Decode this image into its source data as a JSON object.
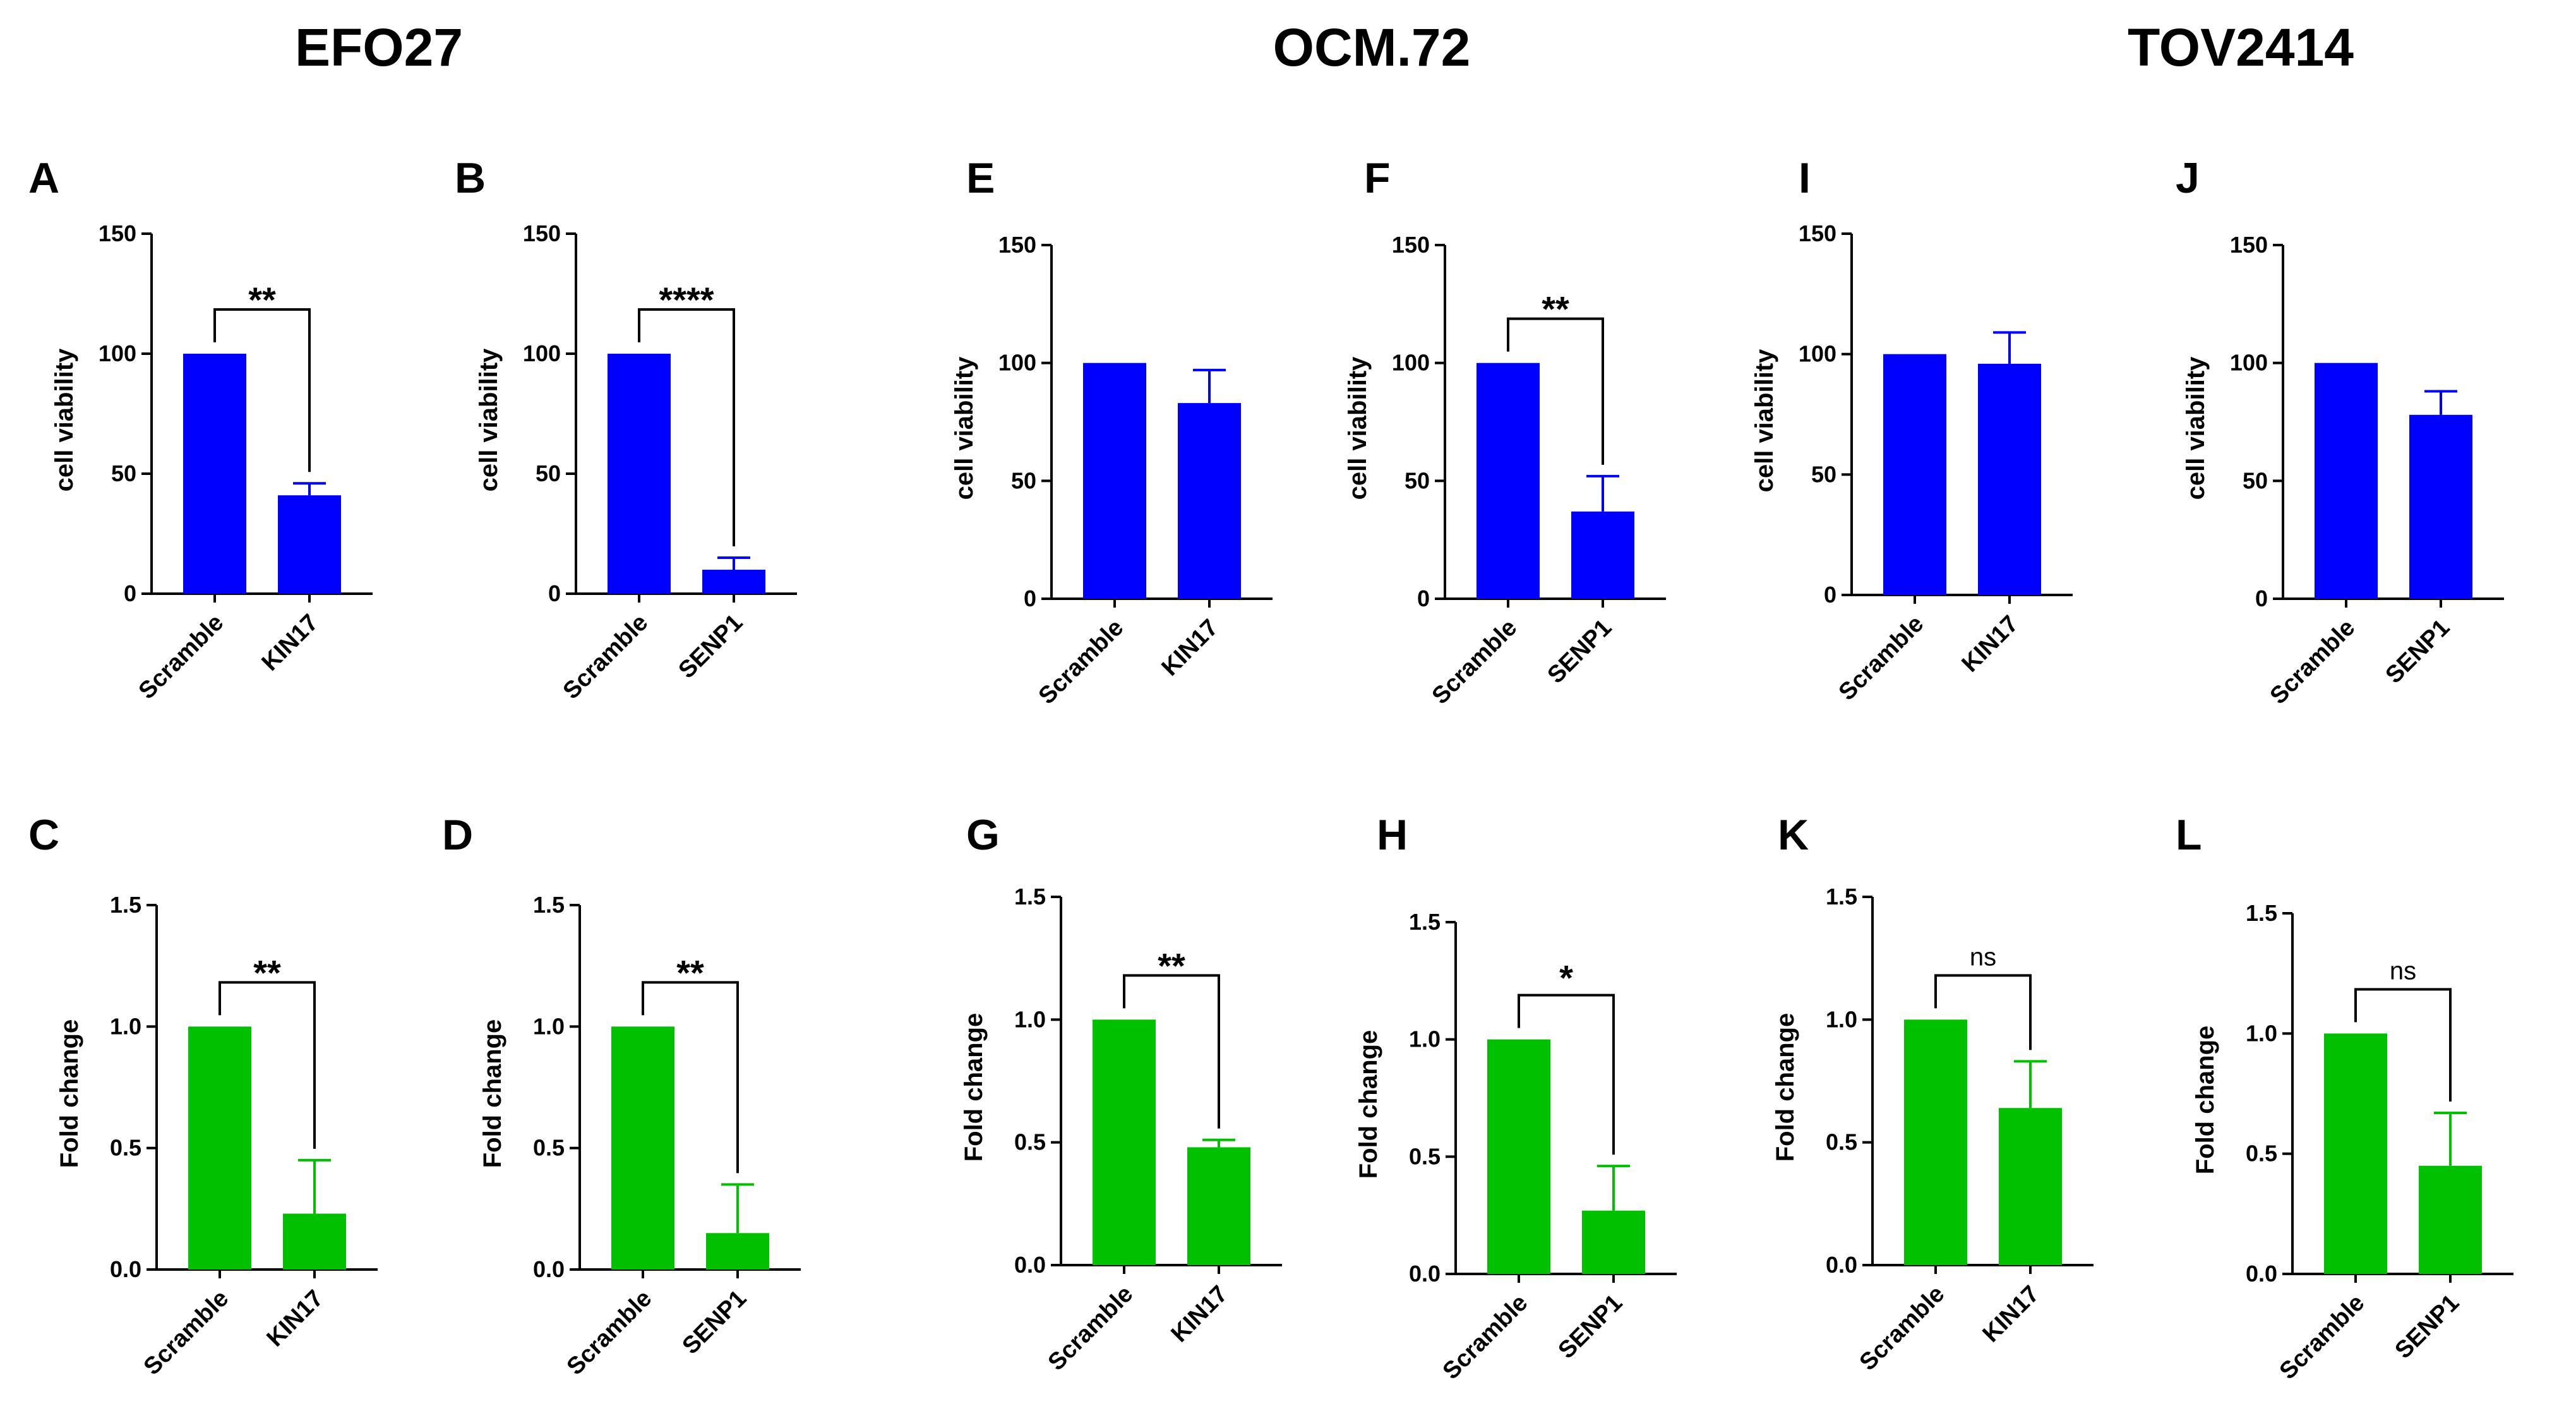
{
  "figure": {
    "groups": [
      {
        "title": "EFO27"
      },
      {
        "title": "OCM.72"
      },
      {
        "title": "TOV2414"
      }
    ]
  },
  "colors": {
    "viability": "#0000ff",
    "fold": "#00c000",
    "axis": "#000000"
  },
  "chart_data": [
    {
      "panel": "A",
      "group": "EFO27",
      "type": "bar",
      "color": "viability",
      "ylabel": "cell viability",
      "ylim": [
        0,
        150
      ],
      "yticks": [
        0,
        50,
        100,
        150
      ],
      "yticklabels": [
        "0",
        "50",
        "100",
        "150"
      ],
      "categories": [
        "Scramble",
        "KIN17"
      ],
      "values": [
        100,
        41
      ],
      "errors": [
        0,
        5
      ],
      "significance": "**"
    },
    {
      "panel": "B",
      "group": "EFO27",
      "type": "bar",
      "color": "viability",
      "ylabel": "cell viability",
      "ylim": [
        0,
        150
      ],
      "yticks": [
        0,
        50,
        100,
        150
      ],
      "yticklabels": [
        "0",
        "50",
        "100",
        "150"
      ],
      "categories": [
        "Scramble",
        "SENP1"
      ],
      "values": [
        100,
        10
      ],
      "errors": [
        0,
        5
      ],
      "significance": "****"
    },
    {
      "panel": "E",
      "group": "OCM.72",
      "type": "bar",
      "color": "viability",
      "ylabel": "cell viability",
      "ylim": [
        0,
        150
      ],
      "yticks": [
        0,
        50,
        100,
        150
      ],
      "yticklabels": [
        "0",
        "50",
        "100",
        "150"
      ],
      "categories": [
        "Scramble",
        "KIN17"
      ],
      "values": [
        100,
        83
      ],
      "errors": [
        0,
        14
      ],
      "significance": ""
    },
    {
      "panel": "F",
      "group": "OCM.72",
      "type": "bar",
      "color": "viability",
      "ylabel": "cell viability",
      "ylim": [
        0,
        150
      ],
      "yticks": [
        0,
        50,
        100,
        150
      ],
      "yticklabels": [
        "0",
        "50",
        "100",
        "150"
      ],
      "categories": [
        "Scramble",
        "SENP1"
      ],
      "values": [
        100,
        37
      ],
      "errors": [
        0,
        15
      ],
      "significance": "**"
    },
    {
      "panel": "I",
      "group": "TOV2414",
      "type": "bar",
      "color": "viability",
      "ylabel": "cell viability",
      "ylim": [
        0,
        150
      ],
      "yticks": [
        0,
        50,
        100,
        150
      ],
      "yticklabels": [
        "0",
        "50",
        "100",
        "150"
      ],
      "categories": [
        "Scramble",
        "KIN17"
      ],
      "values": [
        100,
        96
      ],
      "errors": [
        0,
        13
      ],
      "significance": ""
    },
    {
      "panel": "J",
      "group": "TOV2414",
      "type": "bar",
      "color": "viability",
      "ylabel": "cell viability",
      "ylim": [
        0,
        150
      ],
      "yticks": [
        0,
        50,
        100,
        150
      ],
      "yticklabels": [
        "0",
        "50",
        "100",
        "150"
      ],
      "categories": [
        "Scramble",
        "SENP1"
      ],
      "values": [
        100,
        78
      ],
      "errors": [
        0,
        10
      ],
      "significance": ""
    },
    {
      "panel": "C",
      "group": "EFO27",
      "type": "bar",
      "color": "fold",
      "ylabel": "Fold change",
      "ylim": [
        0,
        1.5
      ],
      "yticks": [
        0,
        0.5,
        1.0,
        1.5
      ],
      "yticklabels": [
        "0.0",
        "0.5",
        "1.0",
        "1.5"
      ],
      "categories": [
        "Scramble",
        "KIN17"
      ],
      "values": [
        1.0,
        0.23
      ],
      "errors": [
        0,
        0.22
      ],
      "significance": "**"
    },
    {
      "panel": "D",
      "group": "EFO27",
      "type": "bar",
      "color": "fold",
      "ylabel": "Fold change",
      "ylim": [
        0,
        1.5
      ],
      "yticks": [
        0,
        0.5,
        1.0,
        1.5
      ],
      "yticklabels": [
        "0.0",
        "0.5",
        "1.0",
        "1.5"
      ],
      "categories": [
        "Scramble",
        "SENP1"
      ],
      "values": [
        1.0,
        0.15
      ],
      "errors": [
        0,
        0.2
      ],
      "significance": "**"
    },
    {
      "panel": "G",
      "group": "OCM.72",
      "type": "bar",
      "color": "fold",
      "ylabel": "Fold change",
      "ylim": [
        0,
        1.5
      ],
      "yticks": [
        0,
        0.5,
        1.0,
        1.5
      ],
      "yticklabels": [
        "0.0",
        "0.5",
        "1.0",
        "1.5"
      ],
      "categories": [
        "Scramble",
        "KIN17"
      ],
      "values": [
        1.0,
        0.48
      ],
      "errors": [
        0,
        0.03
      ],
      "significance": "**"
    },
    {
      "panel": "H",
      "group": "OCM.72",
      "type": "bar",
      "color": "fold",
      "ylabel": "Fold change",
      "ylim": [
        0,
        1.5
      ],
      "yticks": [
        0,
        0.5,
        1.0,
        1.5
      ],
      "yticklabels": [
        "0.0",
        "0.5",
        "1.0",
        "1.5"
      ],
      "categories": [
        "Scramble",
        "SENP1"
      ],
      "values": [
        1.0,
        0.27
      ],
      "errors": [
        0,
        0.19
      ],
      "significance": "*"
    },
    {
      "panel": "K",
      "group": "TOV2414",
      "type": "bar",
      "color": "fold",
      "ylabel": "Fold change",
      "ylim": [
        0,
        1.5
      ],
      "yticks": [
        0,
        0.5,
        1.0,
        1.5
      ],
      "yticklabels": [
        "0.0",
        "0.5",
        "1.0",
        "1.5"
      ],
      "categories": [
        "Scramble",
        "KIN17"
      ],
      "values": [
        1.0,
        0.64
      ],
      "errors": [
        0,
        0.19
      ],
      "significance": "ns"
    },
    {
      "panel": "L",
      "group": "TOV2414",
      "type": "bar",
      "color": "fold",
      "ylabel": "Fold change",
      "ylim": [
        0,
        1.5
      ],
      "yticks": [
        0,
        0.5,
        1.0,
        1.5
      ],
      "yticklabels": [
        "0.0",
        "0.5",
        "1.0",
        "1.5"
      ],
      "categories": [
        "Scramble",
        "SENP1"
      ],
      "values": [
        1.0,
        0.45
      ],
      "errors": [
        0,
        0.22
      ],
      "significance": "ns"
    }
  ]
}
